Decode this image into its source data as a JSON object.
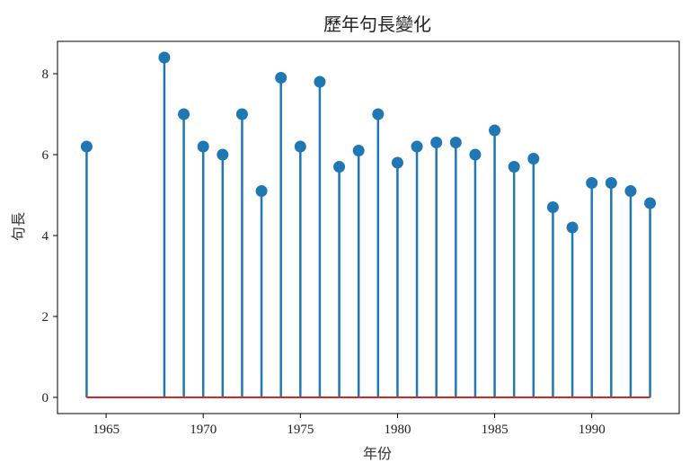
{
  "chart_data": {
    "type": "stem",
    "title": "歷年句長變化",
    "xlabel": "年份",
    "ylabel": "句長",
    "xlim": [
      1962.5,
      1994.5
    ],
    "ylim": [
      -0.4,
      8.8
    ],
    "xticks": [
      1965,
      1970,
      1975,
      1980,
      1985,
      1990
    ],
    "yticks": [
      0,
      2,
      4,
      6,
      8
    ],
    "x": [
      1964,
      1968,
      1969,
      1970,
      1971,
      1972,
      1973,
      1974,
      1975,
      1976,
      1977,
      1978,
      1979,
      1980,
      1981,
      1982,
      1983,
      1984,
      1985,
      1986,
      1987,
      1988,
      1989,
      1990,
      1991,
      1992,
      1993
    ],
    "y": [
      6.2,
      8.4,
      7.0,
      6.2,
      6.0,
      7.0,
      5.1,
      7.9,
      6.2,
      7.8,
      5.7,
      6.1,
      7.0,
      5.8,
      6.2,
      6.3,
      6.3,
      6.0,
      6.6,
      5.7,
      5.9,
      4.7,
      4.2,
      5.3,
      5.3,
      5.1,
      4.8
    ],
    "grid": false,
    "colors": {
      "stem": "#1f77b4",
      "baseline": "#d62728",
      "axis": "#000000"
    }
  }
}
